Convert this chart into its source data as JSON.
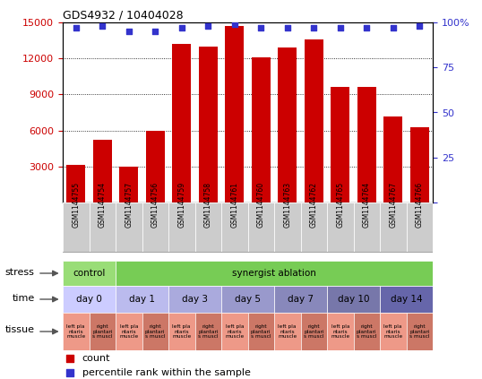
{
  "title": "GDS4932 / 10404028",
  "samples": [
    "GSM1144755",
    "GSM1144754",
    "GSM1144757",
    "GSM1144756",
    "GSM1144759",
    "GSM1144758",
    "GSM1144761",
    "GSM1144760",
    "GSM1144763",
    "GSM1144762",
    "GSM1144765",
    "GSM1144764",
    "GSM1144767",
    "GSM1144766"
  ],
  "bar_values": [
    3100,
    5200,
    3000,
    6000,
    13200,
    13000,
    14700,
    12100,
    12900,
    13600,
    9600,
    9600,
    7200,
    6300
  ],
  "percentile_values": [
    97,
    98,
    95,
    95,
    97,
    98,
    99,
    97,
    97,
    97,
    97,
    97,
    97,
    98
  ],
  "bar_color": "#cc0000",
  "percentile_color": "#3333cc",
  "ylim_left": [
    0,
    15000
  ],
  "ylim_right": [
    0,
    100
  ],
  "yticks_left": [
    3000,
    6000,
    9000,
    12000,
    15000
  ],
  "yticks_right": [
    0,
    25,
    50,
    75,
    100
  ],
  "control_color": "#99dd77",
  "synergist_color": "#77cc55",
  "time_colors": [
    "#ccccff",
    "#bbbbee",
    "#aaaadd",
    "#9999cc",
    "#8888bb",
    "#7777aa",
    "#6666aa"
  ],
  "tissue_left_color": "#ee9988",
  "tissue_right_color": "#cc7766",
  "legend_count_color": "#cc0000",
  "legend_pct_color": "#3333cc",
  "bg_color": "#ffffff"
}
